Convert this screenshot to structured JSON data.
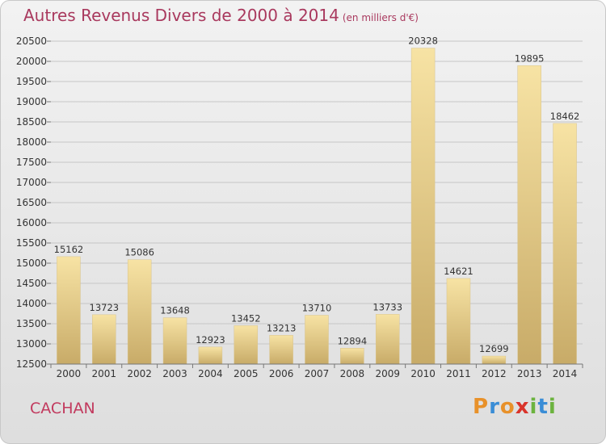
{
  "chart_data": {
    "type": "bar",
    "title": "Autres Revenus Divers de 2000 à 2014",
    "subtitle": "(en milliers d'€)",
    "categories": [
      "2000",
      "2001",
      "2002",
      "2003",
      "2004",
      "2005",
      "2006",
      "2007",
      "2008",
      "2009",
      "2010",
      "2011",
      "2012",
      "2013",
      "2014"
    ],
    "values": [
      15162,
      13723,
      15086,
      13648,
      12923,
      13452,
      13213,
      13710,
      12894,
      13733,
      20328,
      14621,
      12699,
      19895,
      18462
    ],
    "ylim": [
      12500,
      20500
    ],
    "yticks": [
      12500,
      13000,
      13500,
      14000,
      14500,
      15000,
      15500,
      16000,
      16500,
      17000,
      17500,
      18000,
      18500,
      19000,
      19500,
      20000,
      20500
    ],
    "grid": true,
    "xlabel": "",
    "ylabel": ""
  },
  "city": "CACHAN",
  "logo": {
    "letters": [
      "P",
      "r",
      "o",
      "x",
      "i",
      "t",
      "i"
    ],
    "colors": [
      "#e8912a",
      "#3a8dd6",
      "#e8912a",
      "#d9342b",
      "#6cb33f",
      "#3a8dd6",
      "#6cb33f"
    ]
  },
  "colors": {
    "title": "#a9395e",
    "bar_light": "#f7e2a2",
    "bar_dark": "#c9ad6b",
    "grid": "#c8c8c8"
  }
}
